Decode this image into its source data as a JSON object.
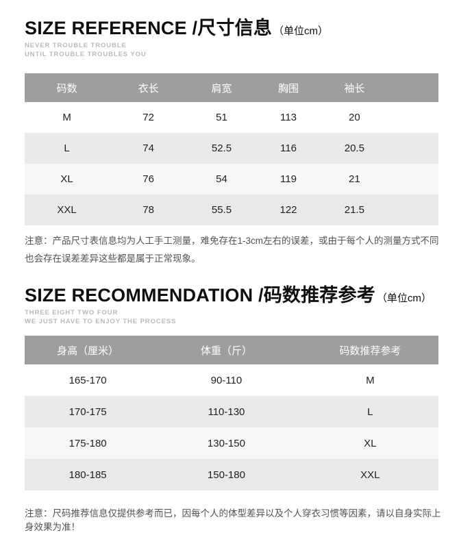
{
  "colors": {
    "table_header_bg": "#9e9e9e",
    "table_header_text": "#ffffff",
    "row_white": "#ffffff",
    "row_gray": "#eaeaea",
    "row_offwhite": "#f6f6f6",
    "row_gray2": "#e9e9e9",
    "title": "#0f0f0f",
    "slogan": "#b9b9b9",
    "note": "#525252",
    "cell_text": "#1f1f1f"
  },
  "size_reference": {
    "title": "SIZE REFERENCE /尺寸信息",
    "title_unit": "（单位cm）",
    "slogan_line1": "NEVER TROUBLE TROUBLE",
    "slogan_line2": "UNTIL TROUBLE TROUBLES YOU",
    "table": {
      "headers": [
        "码数",
        "衣长",
        "肩宽",
        "胸围",
        "袖长"
      ],
      "rows": [
        [
          "M",
          "72",
          "51",
          "113",
          "20"
        ],
        [
          "L",
          "74",
          "52.5",
          "116",
          "20.5"
        ],
        [
          "XL",
          "76",
          "54",
          "119",
          "21"
        ],
        [
          "XXL",
          "78",
          "55.5",
          "122",
          "21.5"
        ]
      ]
    },
    "note": "注意：产品尺寸表信息均为人工手工测量，难免存在1-3cm左右的误差，或由于每个人的测量方式不同也会存在误差差异这些都是属于正常现象。"
  },
  "size_recommendation": {
    "title": "SIZE RECOMMENDATION /码数推荐参考",
    "title_unit": "（单位cm）",
    "slogan_line1": "THREE EIGHT TWO FOUR",
    "slogan_line2": "WE JUST HAVE TO ENJOY THE PROCESS",
    "table": {
      "headers": [
        "身高（厘米）",
        "体重（斤）",
        "码数推荐参考"
      ],
      "rows": [
        [
          "165-170",
          "90-110",
          "M"
        ],
        [
          "170-175",
          "110-130",
          "L"
        ],
        [
          "175-180",
          "130-150",
          "XL"
        ],
        [
          "180-185",
          "150-180",
          "XXL"
        ]
      ]
    },
    "note": "注意：尺码推荐信息仅提供参考而已，因每个人的体型差异以及个人穿衣习惯等因素，请以自身实际上身效果为准！"
  }
}
